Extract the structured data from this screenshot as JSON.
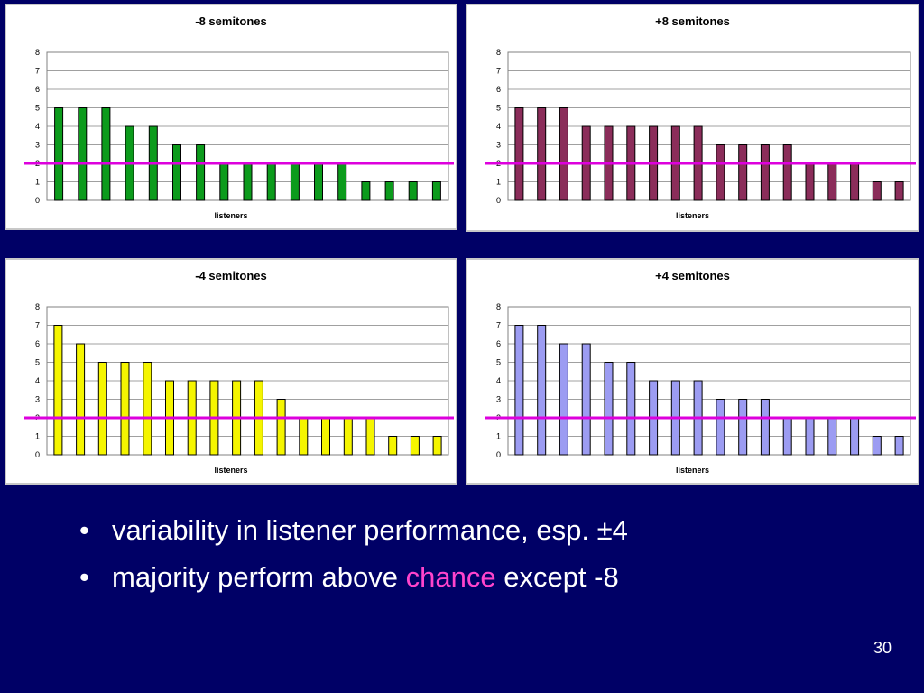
{
  "slide": {
    "bullets": [
      {
        "parts": [
          {
            "text": "variability in listener performance, esp. ±4",
            "color": "#ffffff"
          }
        ]
      },
      {
        "parts": [
          {
            "text": "majority perform above ",
            "color": "#ffffff"
          },
          {
            "text": "chance",
            "color": "#ff44cc"
          },
          {
            "text": " except -8",
            "color": "#ffffff"
          }
        ]
      }
    ],
    "slide_number": "30"
  },
  "colors": {
    "reference_line": "#dd00dd",
    "gridline": "#808080",
    "background": "#000066"
  },
  "chart_data": [
    {
      "type": "bar",
      "title": "-8 semitones",
      "xlabel": "listeners",
      "ylabel": "",
      "ylim": [
        0,
        8
      ],
      "yticks": [
        0,
        1,
        2,
        3,
        4,
        5,
        6,
        7,
        8
      ],
      "values": [
        5,
        5,
        5,
        4,
        4,
        3,
        3,
        2,
        2,
        2,
        2,
        2,
        2,
        1,
        1,
        1,
        1
      ],
      "bar_color": "#0c9b1c",
      "chance_level": 2,
      "grid": true
    },
    {
      "type": "bar",
      "title": "+8 semitones",
      "xlabel": "listeners",
      "ylabel": "",
      "ylim": [
        0,
        8
      ],
      "yticks": [
        0,
        1,
        2,
        3,
        4,
        5,
        6,
        7,
        8
      ],
      "values": [
        5,
        5,
        5,
        4,
        4,
        4,
        4,
        4,
        4,
        3,
        3,
        3,
        3,
        2,
        2,
        2,
        1,
        1
      ],
      "bar_color": "#8b2d5a",
      "chance_level": 2,
      "grid": true
    },
    {
      "type": "bar",
      "title": "-4 semitones",
      "xlabel": "listeners",
      "ylabel": "",
      "ylim": [
        0,
        8
      ],
      "yticks": [
        0,
        1,
        2,
        3,
        4,
        5,
        6,
        7,
        8
      ],
      "values": [
        7,
        6,
        5,
        5,
        5,
        4,
        4,
        4,
        4,
        4,
        3,
        2,
        2,
        2,
        2,
        1,
        1,
        1
      ],
      "bar_color": "#f5f500",
      "chance_level": 2,
      "grid": true
    },
    {
      "type": "bar",
      "title": "+4 semitones",
      "xlabel": "listeners",
      "ylabel": "",
      "ylim": [
        0,
        8
      ],
      "yticks": [
        0,
        1,
        2,
        3,
        4,
        5,
        6,
        7,
        8
      ],
      "values": [
        7,
        7,
        6,
        6,
        5,
        5,
        4,
        4,
        4,
        3,
        3,
        3,
        2,
        2,
        2,
        2,
        1,
        1
      ],
      "bar_color": "#9c9cf2",
      "chance_level": 2,
      "grid": true
    }
  ]
}
